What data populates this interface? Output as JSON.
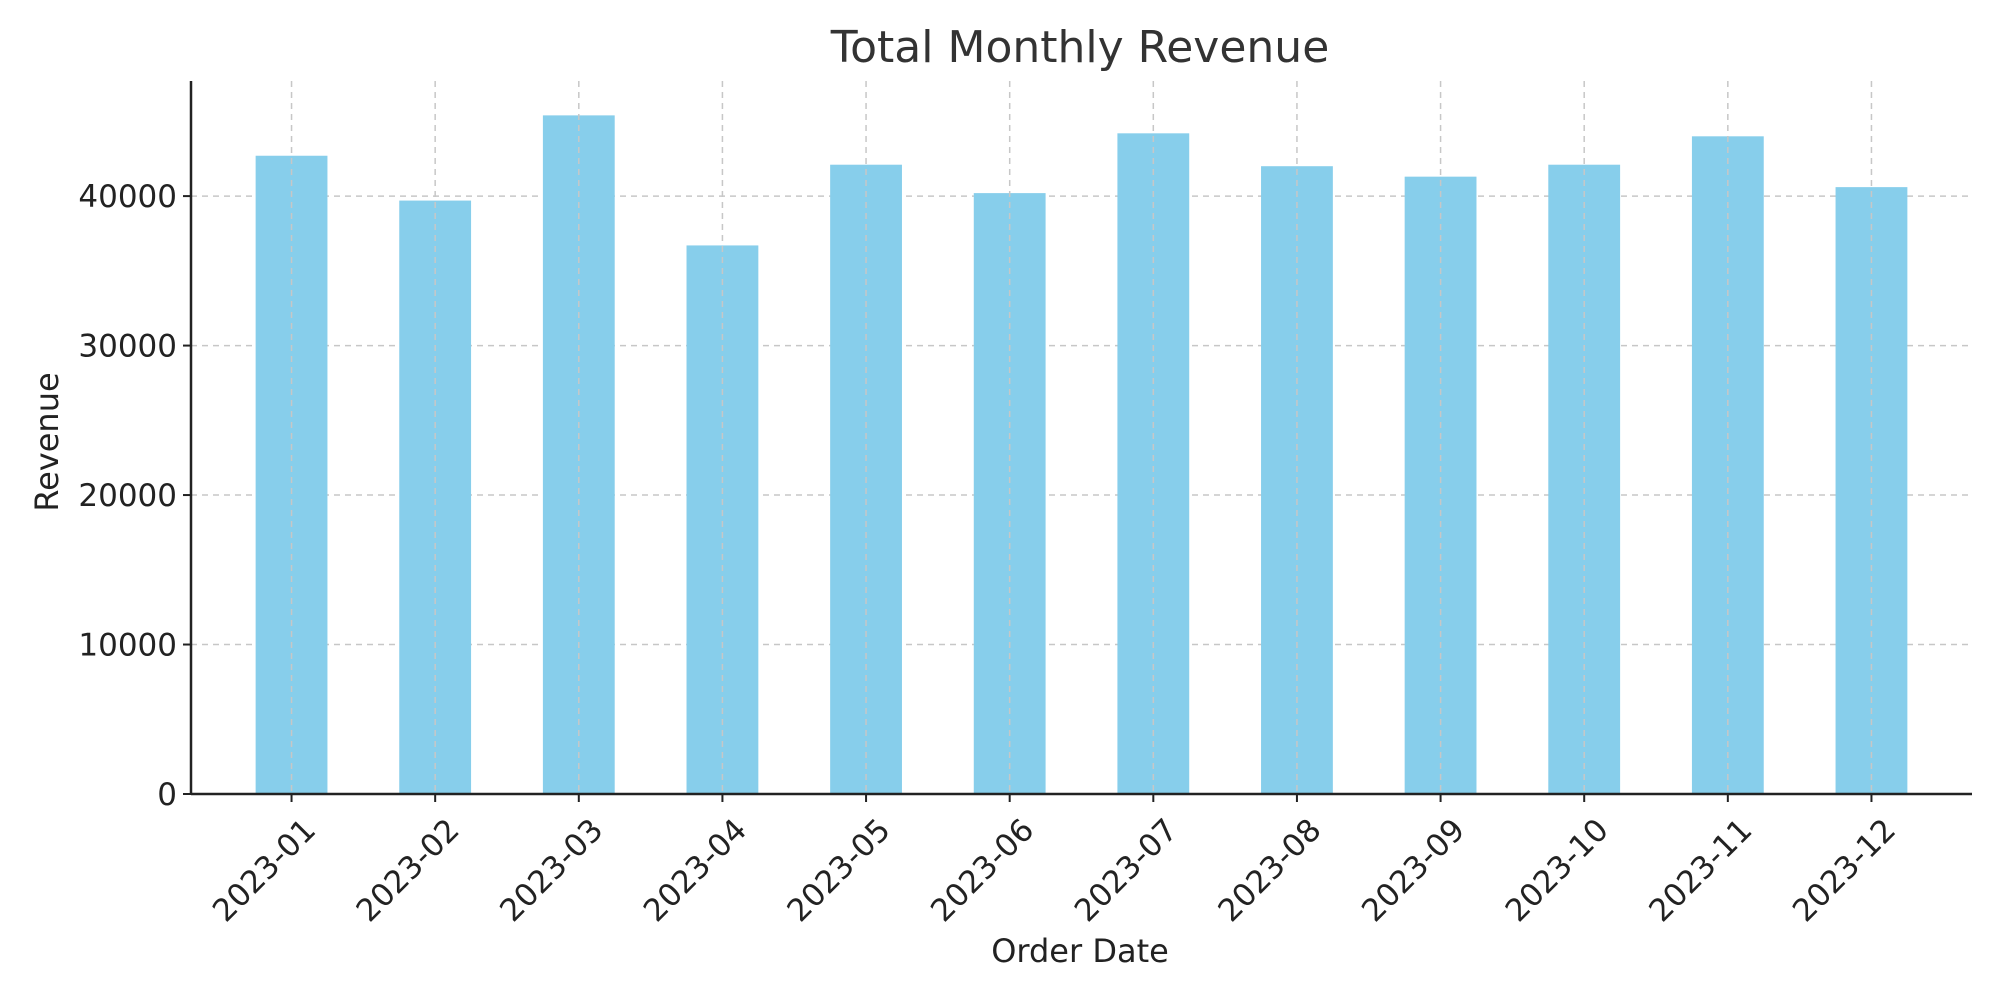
{
  "chart_data": {
    "type": "bar",
    "title": "Total Monthly Revenue",
    "xlabel": "Order Date",
    "ylabel": "Revenue",
    "categories": [
      "2023-01",
      "2023-02",
      "2023-03",
      "2023-04",
      "2023-05",
      "2023-06",
      "2023-07",
      "2023-08",
      "2023-09",
      "2023-10",
      "2023-11",
      "2023-12"
    ],
    "values": [
      42700,
      39700,
      45400,
      36700,
      42100,
      40200,
      44200,
      42000,
      41300,
      42100,
      44000,
      40600
    ],
    "ylim": [
      0,
      47700
    ],
    "yticks": [
      0,
      10000,
      20000,
      30000,
      40000
    ],
    "ytick_labels": [
      "0",
      "10000",
      "20000",
      "30000",
      "40000"
    ],
    "grid": true,
    "bar_color": "#87ceeb"
  }
}
